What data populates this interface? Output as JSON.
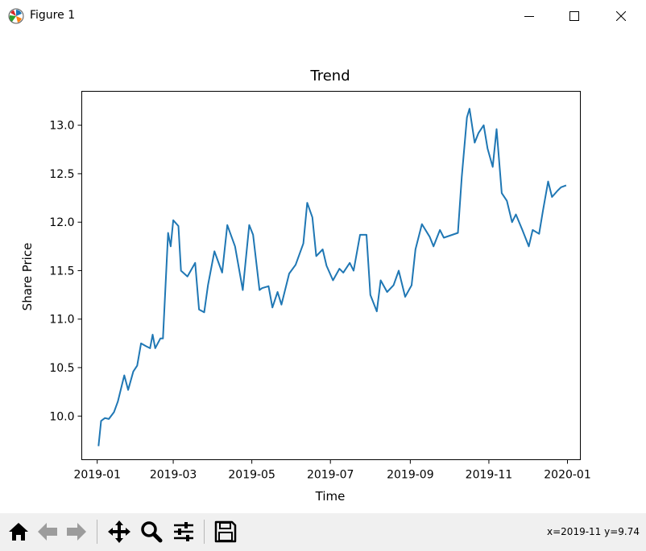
{
  "window": {
    "title": "Figure 1"
  },
  "toolbar": {
    "buttons": [
      "home-icon",
      "back-arrow-icon",
      "forward-arrow-icon",
      "pan-icon",
      "zoom-icon",
      "configure-subplots-icon",
      "save-icon"
    ],
    "coords": "x=2019-11 y=9.74"
  },
  "colors": {
    "line": "#1f77b4",
    "toolbar_bg": "#f0f0f0"
  },
  "chart_data": {
    "type": "line",
    "title": "Trend",
    "xlabel": "Time",
    "ylabel": "Share Price",
    "xlim": [
      "2018-12-20",
      "2020-01-11"
    ],
    "ylim": [
      9.55,
      13.35
    ],
    "xticks": [
      "2019-01",
      "2019-03",
      "2019-05",
      "2019-07",
      "2019-09",
      "2019-11",
      "2020-01"
    ],
    "yticks": [
      "10.0",
      "10.5",
      "11.0",
      "11.5",
      "12.0",
      "12.5",
      "13.0"
    ],
    "grid": false,
    "legend": "none",
    "series": [
      {
        "x": [
          "2019-01-02",
          "2019-01-04",
          "2019-01-07",
          "2019-01-10",
          "2019-01-14",
          "2019-01-17",
          "2019-01-22",
          "2019-01-25",
          "2019-01-29",
          "2019-02-01",
          "2019-02-04",
          "2019-02-08",
          "2019-02-11",
          "2019-02-13",
          "2019-02-15",
          "2019-02-19",
          "2019-02-21",
          "2019-02-25",
          "2019-02-27",
          "2019-03-01",
          "2019-03-05",
          "2019-03-07",
          "2019-03-12",
          "2019-03-18",
          "2019-03-21",
          "2019-03-25",
          "2019-03-28",
          "2019-04-02",
          "2019-04-08",
          "2019-04-12",
          "2019-04-18",
          "2019-04-24",
          "2019-04-29",
          "2019-05-02",
          "2019-05-07",
          "2019-05-09",
          "2019-05-14",
          "2019-05-17",
          "2019-05-21",
          "2019-05-24",
          "2019-05-30",
          "2019-06-04",
          "2019-06-10",
          "2019-06-13",
          "2019-06-17",
          "2019-06-20",
          "2019-06-25",
          "2019-06-28",
          "2019-07-03",
          "2019-07-08",
          "2019-07-11",
          "2019-07-16",
          "2019-07-19",
          "2019-07-24",
          "2019-07-29",
          "2019-08-01",
          "2019-08-06",
          "2019-08-09",
          "2019-08-14",
          "2019-08-19",
          "2019-08-23",
          "2019-08-28",
          "2019-09-02",
          "2019-09-05",
          "2019-09-10",
          "2019-09-16",
          "2019-09-19",
          "2019-09-24",
          "2019-09-27",
          "2019-10-08",
          "2019-10-11",
          "2019-10-15",
          "2019-10-17",
          "2019-10-21",
          "2019-10-24",
          "2019-10-28",
          "2019-10-31",
          "2019-11-04",
          "2019-11-07",
          "2019-11-11",
          "2019-11-15",
          "2019-11-19",
          "2019-11-22",
          "2019-11-27",
          "2019-12-02",
          "2019-12-05",
          "2019-12-10",
          "2019-12-13",
          "2019-12-17",
          "2019-12-20",
          "2019-12-24",
          "2019-12-27",
          "2019-12-31"
        ],
        "y": [
          9.69,
          9.95,
          9.98,
          9.97,
          10.04,
          10.15,
          10.42,
          10.27,
          10.46,
          10.52,
          10.75,
          10.72,
          10.7,
          10.84,
          10.7,
          10.8,
          10.8,
          11.89,
          11.75,
          12.02,
          11.96,
          11.5,
          11.44,
          11.58,
          11.1,
          11.07,
          11.35,
          11.7,
          11.48,
          11.97,
          11.75,
          11.3,
          11.97,
          11.87,
          11.3,
          11.32,
          11.34,
          11.12,
          11.28,
          11.15,
          11.47,
          11.56,
          11.78,
          12.2,
          12.05,
          11.65,
          11.72,
          11.55,
          11.4,
          11.52,
          11.48,
          11.58,
          11.5,
          11.87,
          11.87,
          11.25,
          11.08,
          11.4,
          11.28,
          11.35,
          11.5,
          11.23,
          11.35,
          11.72,
          11.98,
          11.85,
          11.75,
          11.92,
          11.84,
          11.89,
          12.47,
          13.08,
          13.17,
          12.82,
          12.92,
          13.0,
          12.76,
          12.57,
          12.96,
          12.3,
          12.22,
          12.0,
          12.08,
          11.92,
          11.75,
          11.92,
          11.88,
          12.12,
          12.42,
          12.26,
          12.32,
          12.36,
          12.38
        ]
      }
    ]
  }
}
